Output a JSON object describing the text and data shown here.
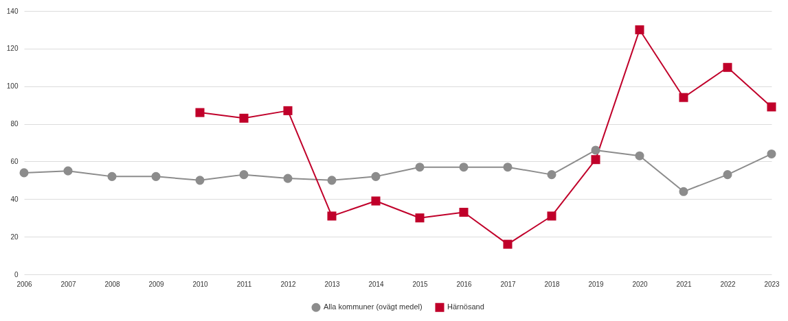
{
  "chart_data": {
    "type": "line",
    "categories": [
      "2006",
      "2007",
      "2008",
      "2009",
      "2010",
      "2011",
      "2012",
      "2013",
      "2014",
      "2015",
      "2016",
      "2017",
      "2018",
      "2019",
      "2020",
      "2021",
      "2022",
      "2023"
    ],
    "series": [
      {
        "name": "Alla kommuner (ovägt medel)",
        "color": "#8c8c8c",
        "marker": "circle",
        "values": [
          54,
          55,
          52,
          52,
          50,
          53,
          51,
          50,
          52,
          57,
          57,
          57,
          53,
          66,
          63,
          44,
          53,
          64
        ]
      },
      {
        "name": "Härnösand",
        "color": "#c0002a",
        "marker": "square",
        "values": [
          null,
          null,
          null,
          null,
          86,
          83,
          87,
          31,
          39,
          30,
          33,
          16,
          31,
          61,
          130,
          94,
          110,
          89
        ]
      }
    ],
    "ylim": [
      0,
      140
    ],
    "yticks": [
      0,
      20,
      40,
      60,
      80,
      100,
      120,
      140
    ],
    "grid": "y",
    "legend": "bottom"
  }
}
